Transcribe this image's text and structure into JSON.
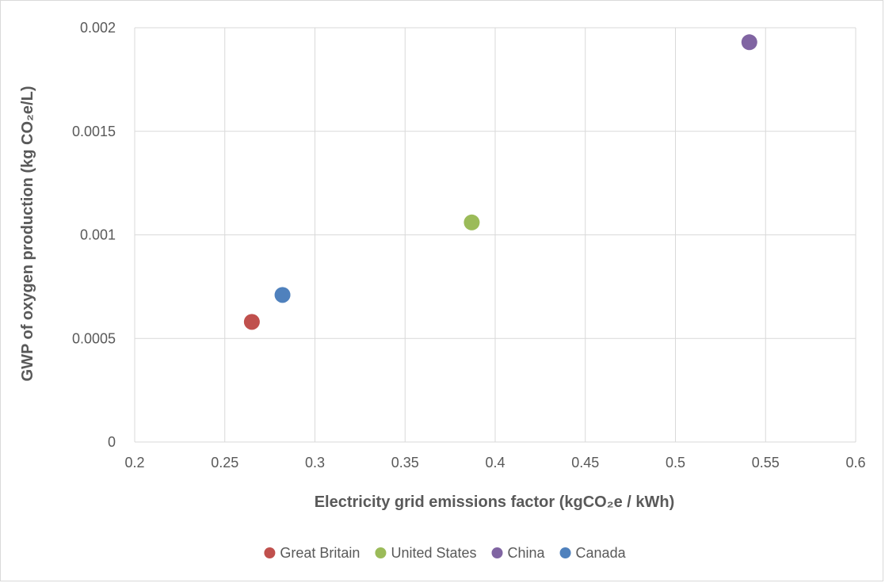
{
  "chart_data": {
    "type": "scatter",
    "title": "",
    "xlabel": "Electricity grid emissions factor (kgCO₂e / kWh)",
    "ylabel": "GWP of oxygen production (kg CO₂e/L)",
    "xlim": [
      0.2,
      0.6
    ],
    "ylim": [
      0,
      0.002
    ],
    "x_ticks": [
      "0.2",
      "0.25",
      "0.3",
      "0.35",
      "0.4",
      "0.45",
      "0.5",
      "0.55",
      "0.6"
    ],
    "y_ticks": [
      "0",
      "0.0005",
      "0.001",
      "0.0015",
      "0.002"
    ],
    "grid": true,
    "legend_position": "bottom",
    "series": [
      {
        "name": "Great Britain",
        "color": "#c0504d",
        "x": [
          0.265
        ],
        "y": [
          0.00058
        ]
      },
      {
        "name": "United States",
        "color": "#9bbb59",
        "x": [
          0.387
        ],
        "y": [
          0.00106
        ]
      },
      {
        "name": "China",
        "color": "#8064a2",
        "x": [
          0.541
        ],
        "y": [
          0.00193
        ]
      },
      {
        "name": "Canada",
        "color": "#4f81bd",
        "x": [
          0.282
        ],
        "y": [
          0.00071
        ]
      }
    ]
  }
}
